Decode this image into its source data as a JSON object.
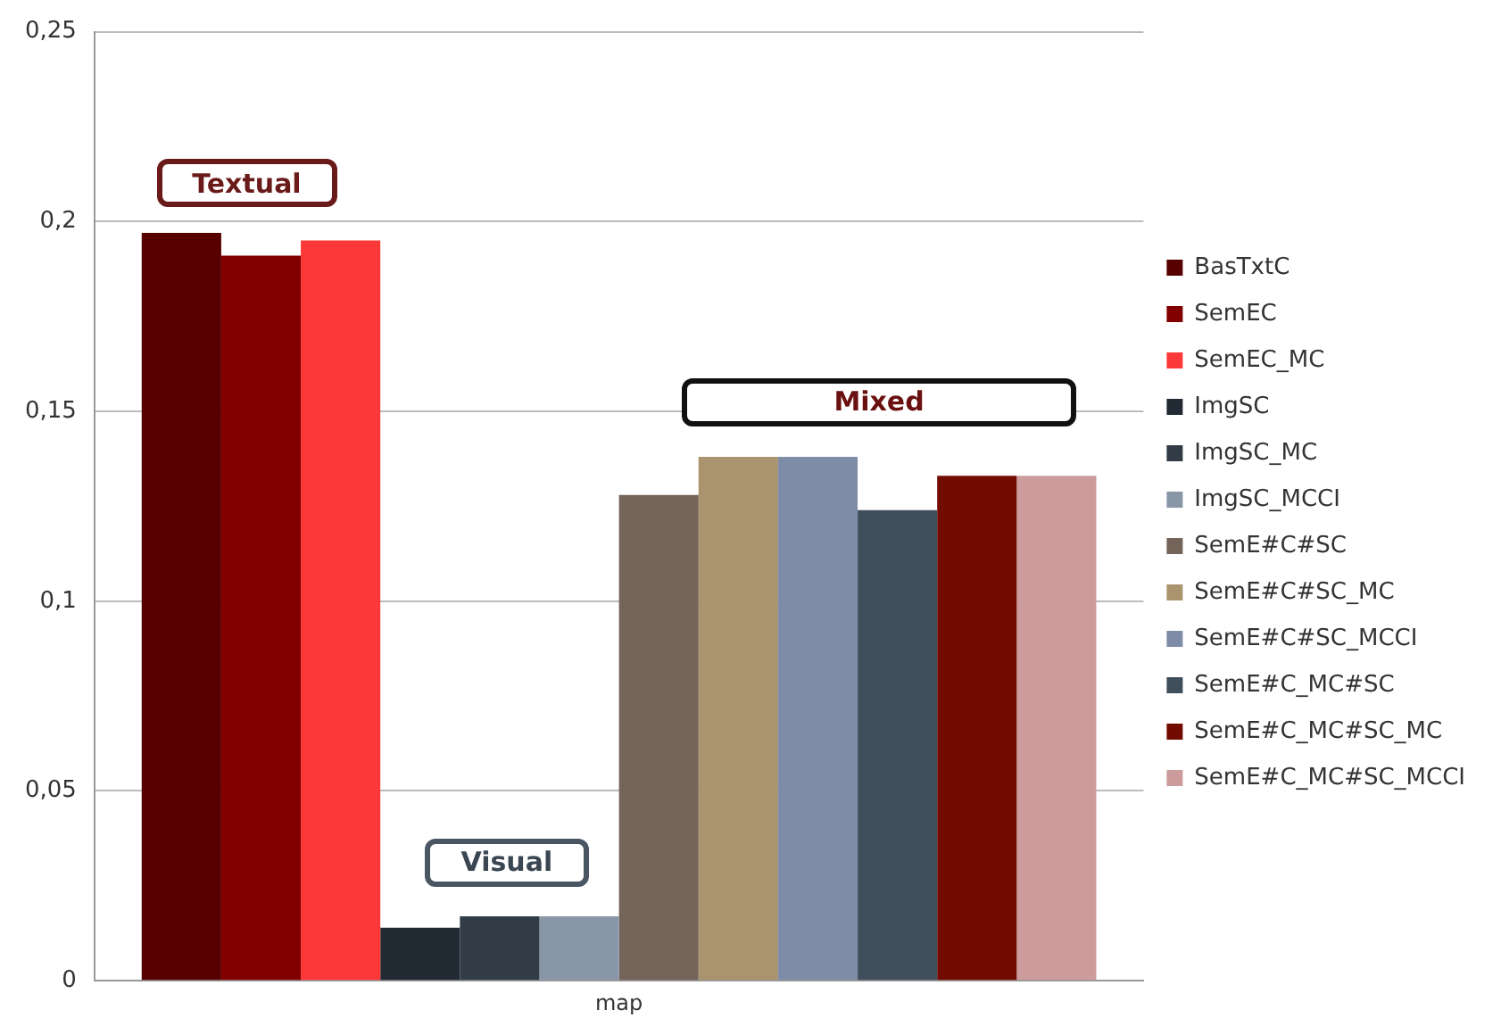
{
  "chart_data": {
    "type": "bar",
    "categories": [
      "map"
    ],
    "series": [
      {
        "name": "BasTxtC",
        "color": "#560000",
        "values": [
          0.197
        ]
      },
      {
        "name": "SemEC",
        "color": "#820000",
        "values": [
          0.191
        ]
      },
      {
        "name": "SemEC_MC",
        "color": "#fd3838",
        "values": [
          0.195
        ]
      },
      {
        "name": "ImgSC",
        "color": "#222a33",
        "values": [
          0.014
        ]
      },
      {
        "name": "ImgSC_MC",
        "color": "#313c46",
        "values": [
          0.017
        ]
      },
      {
        "name": "ImgSC_MCCI",
        "color": "#8896a8",
        "values": [
          0.017
        ]
      },
      {
        "name": "SemE#C#SC",
        "color": "#74645a",
        "values": [
          0.128
        ]
      },
      {
        "name": "SemE#C#SC_MC",
        "color": "#aa9470",
        "values": [
          0.138
        ]
      },
      {
        "name": "SemE#C#SC_MCCI",
        "color": "#7f8ca8",
        "values": [
          0.138
        ]
      },
      {
        "name": "SemE#C_MC#SC",
        "color": "#414e5c",
        "values": [
          0.124
        ]
      },
      {
        "name": "SemE#C_MC#SC_MC",
        "color": "#720c00",
        "values": [
          0.133
        ]
      },
      {
        "name": "SemE#C_MC#SC_MCCI",
        "color": "#cc9c9c",
        "values": [
          0.133
        ]
      }
    ],
    "ylim": [
      0,
      0.25
    ],
    "yticks": [
      0,
      {
        "value": 0.05,
        "label": "0,05"
      },
      {
        "value": 0.1,
        "label": "0,1"
      },
      {
        "value": 0.15,
        "label": "0,15"
      },
      {
        "value": 0.2,
        "label": "0,2"
      },
      {
        "value": 0.25,
        "label": "0,25"
      }
    ],
    "annotations": [
      "Textual",
      "Visual",
      "Mixed"
    ],
    "grid": "y",
    "legend": "right"
  }
}
